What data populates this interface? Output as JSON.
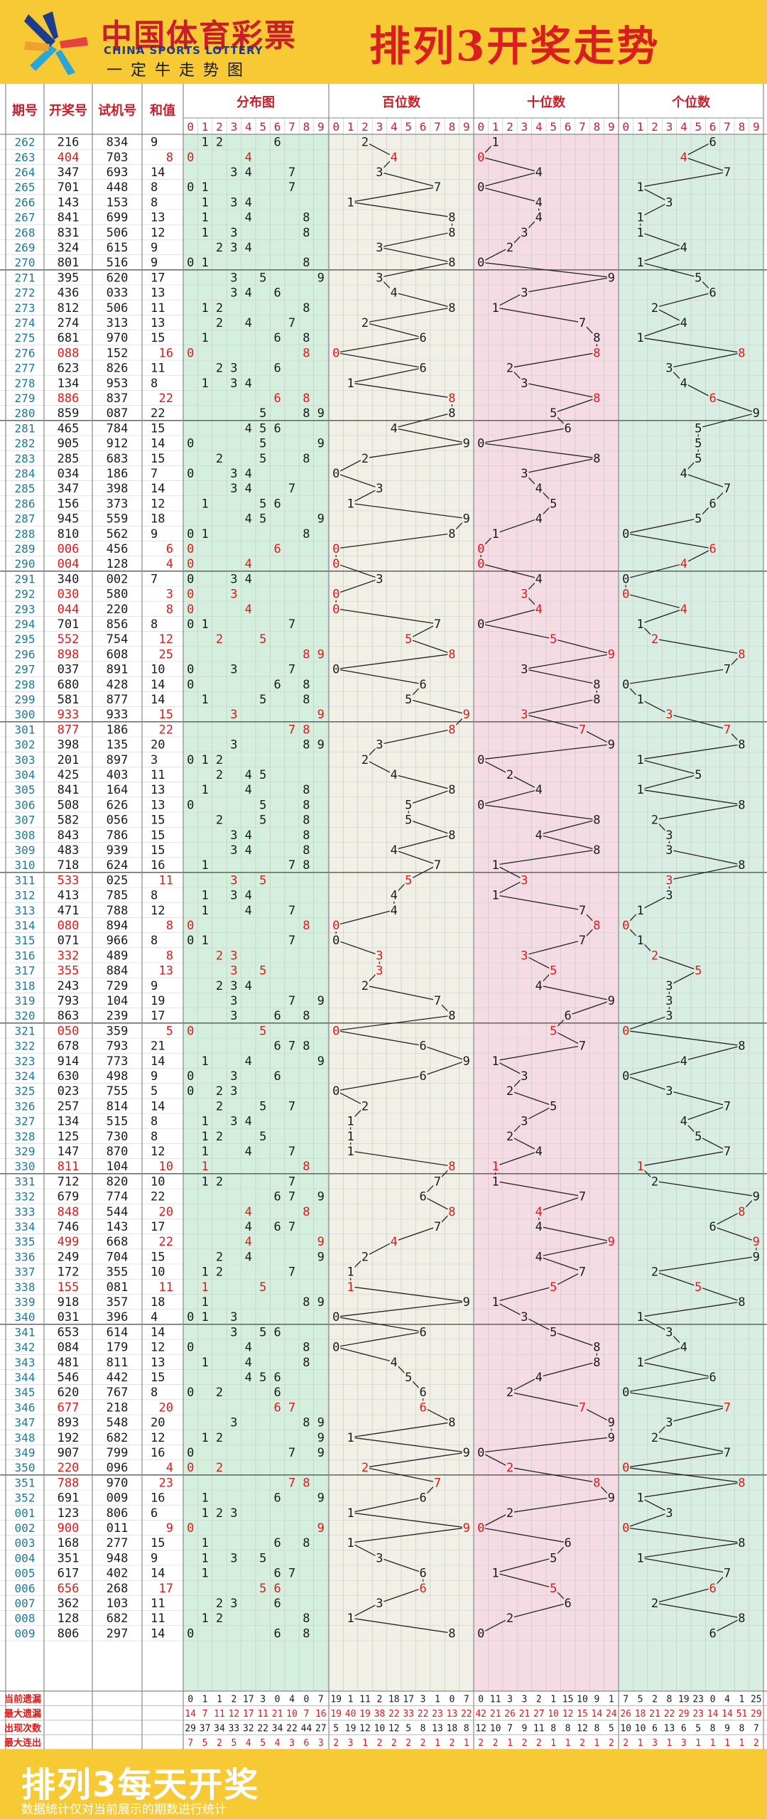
{
  "header": {
    "brand_cn": "中国体育彩票",
    "brand_en": "CHINA SPORTS LOTTERY",
    "slogan": "一定牛走势图",
    "title": "排列3开奖走势"
  },
  "footer": {
    "title": "排列3每天开奖",
    "note": "数据统计仅对当前展示的期数进行统计"
  },
  "colors": {
    "accent_red": "#e01818",
    "dist_bg": "#d5efde",
    "hundreds_bg": "#f1f0e7",
    "tens_bg": "#f5dbe4",
    "units_bg": "#d9eee3",
    "header_bg": "#f7c935"
  },
  "chart_data": {
    "type": "table",
    "columns": {
      "period": "期号",
      "draw": "开奖号",
      "trial": "试机号",
      "sum": "和值"
    },
    "groups": [
      "分布图",
      "百位数",
      "十位数",
      "个位数"
    ],
    "digit_headers": [
      "0",
      "1",
      "2",
      "3",
      "4",
      "5",
      "6",
      "7",
      "8",
      "9"
    ],
    "rows": [
      [
        "262",
        "216",
        "834",
        "9"
      ],
      [
        "263",
        "404",
        "703",
        "8"
      ],
      [
        "264",
        "347",
        "693",
        "14"
      ],
      [
        "265",
        "701",
        "448",
        "8"
      ],
      [
        "266",
        "143",
        "153",
        "8"
      ],
      [
        "267",
        "841",
        "699",
        "13"
      ],
      [
        "268",
        "831",
        "506",
        "12"
      ],
      [
        "269",
        "324",
        "615",
        "9"
      ],
      [
        "270",
        "801",
        "516",
        "9"
      ],
      [
        "271",
        "395",
        "620",
        "17"
      ],
      [
        "272",
        "436",
        "033",
        "13"
      ],
      [
        "273",
        "812",
        "506",
        "11"
      ],
      [
        "274",
        "274",
        "313",
        "13"
      ],
      [
        "275",
        "681",
        "970",
        "15"
      ],
      [
        "276",
        "088",
        "152",
        "16"
      ],
      [
        "277",
        "623",
        "826",
        "11"
      ],
      [
        "278",
        "134",
        "953",
        "8"
      ],
      [
        "279",
        "886",
        "837",
        "22"
      ],
      [
        "280",
        "859",
        "087",
        "22"
      ],
      [
        "281",
        "465",
        "784",
        "15"
      ],
      [
        "282",
        "905",
        "912",
        "14"
      ],
      [
        "283",
        "285",
        "683",
        "15"
      ],
      [
        "284",
        "034",
        "186",
        "7"
      ],
      [
        "285",
        "347",
        "398",
        "14"
      ],
      [
        "286",
        "156",
        "373",
        "12"
      ],
      [
        "287",
        "945",
        "559",
        "18"
      ],
      [
        "288",
        "810",
        "562",
        "9"
      ],
      [
        "289",
        "006",
        "456",
        "6"
      ],
      [
        "290",
        "004",
        "128",
        "4"
      ],
      [
        "291",
        "340",
        "002",
        "7"
      ],
      [
        "292",
        "030",
        "580",
        "3"
      ],
      [
        "293",
        "044",
        "220",
        "8"
      ],
      [
        "294",
        "701",
        "856",
        "8"
      ],
      [
        "295",
        "552",
        "754",
        "12"
      ],
      [
        "296",
        "898",
        "608",
        "25"
      ],
      [
        "297",
        "037",
        "891",
        "10"
      ],
      [
        "298",
        "680",
        "428",
        "14"
      ],
      [
        "299",
        "581",
        "877",
        "14"
      ],
      [
        "300",
        "933",
        "933",
        "15"
      ],
      [
        "301",
        "877",
        "186",
        "22"
      ],
      [
        "302",
        "398",
        "135",
        "20"
      ],
      [
        "303",
        "201",
        "897",
        "3"
      ],
      [
        "304",
        "425",
        "403",
        "11"
      ],
      [
        "305",
        "841",
        "164",
        "13"
      ],
      [
        "306",
        "508",
        "626",
        "13"
      ],
      [
        "307",
        "582",
        "056",
        "15"
      ],
      [
        "308",
        "843",
        "786",
        "15"
      ],
      [
        "309",
        "483",
        "939",
        "15"
      ],
      [
        "310",
        "718",
        "624",
        "16"
      ],
      [
        "311",
        "533",
        "025",
        "11"
      ],
      [
        "312",
        "413",
        "785",
        "8"
      ],
      [
        "313",
        "471",
        "788",
        "12"
      ],
      [
        "314",
        "080",
        "894",
        "8"
      ],
      [
        "315",
        "071",
        "966",
        "8"
      ],
      [
        "316",
        "332",
        "489",
        "8"
      ],
      [
        "317",
        "355",
        "884",
        "13"
      ],
      [
        "318",
        "243",
        "729",
        "9"
      ],
      [
        "319",
        "793",
        "104",
        "19"
      ],
      [
        "320",
        "863",
        "239",
        "17"
      ],
      [
        "321",
        "050",
        "359",
        "5"
      ],
      [
        "322",
        "678",
        "793",
        "21"
      ],
      [
        "323",
        "914",
        "773",
        "14"
      ],
      [
        "324",
        "630",
        "498",
        "9"
      ],
      [
        "325",
        "023",
        "755",
        "5"
      ],
      [
        "326",
        "257",
        "814",
        "14"
      ],
      [
        "327",
        "134",
        "515",
        "8"
      ],
      [
        "328",
        "125",
        "730",
        "8"
      ],
      [
        "329",
        "147",
        "870",
        "12"
      ],
      [
        "330",
        "811",
        "104",
        "10"
      ],
      [
        "331",
        "712",
        "820",
        "10"
      ],
      [
        "332",
        "679",
        "774",
        "22"
      ],
      [
        "333",
        "848",
        "544",
        "20"
      ],
      [
        "334",
        "746",
        "143",
        "17"
      ],
      [
        "335",
        "499",
        "668",
        "22"
      ],
      [
        "336",
        "249",
        "704",
        "15"
      ],
      [
        "337",
        "172",
        "355",
        "10"
      ],
      [
        "338",
        "155",
        "081",
        "11"
      ],
      [
        "339",
        "918",
        "357",
        "18"
      ],
      [
        "340",
        "031",
        "396",
        "4"
      ],
      [
        "341",
        "653",
        "614",
        "14"
      ],
      [
        "342",
        "084",
        "179",
        "12"
      ],
      [
        "343",
        "481",
        "811",
        "13"
      ],
      [
        "344",
        "546",
        "442",
        "15"
      ],
      [
        "345",
        "620",
        "767",
        "8"
      ],
      [
        "346",
        "677",
        "218",
        "20"
      ],
      [
        "347",
        "893",
        "548",
        "20"
      ],
      [
        "348",
        "192",
        "682",
        "12"
      ],
      [
        "349",
        "907",
        "799",
        "16"
      ],
      [
        "350",
        "220",
        "096",
        "4"
      ],
      [
        "351",
        "788",
        "970",
        "23"
      ],
      [
        "352",
        "691",
        "009",
        "16"
      ],
      [
        "001",
        "123",
        "806",
        "6"
      ],
      [
        "002",
        "900",
        "011",
        "9"
      ],
      [
        "003",
        "168",
        "277",
        "15"
      ],
      [
        "004",
        "351",
        "948",
        "9"
      ],
      [
        "005",
        "617",
        "402",
        "14"
      ],
      [
        "006",
        "656",
        "268",
        "17"
      ],
      [
        "007",
        "362",
        "103",
        "11"
      ],
      [
        "008",
        "128",
        "682",
        "11"
      ],
      [
        "009",
        "806",
        "297",
        "14"
      ]
    ],
    "stats": [
      {
        "label": "当前遗漏",
        "values": [
          "0",
          "1",
          "1",
          "2",
          "17",
          "3",
          "0",
          "4",
          "0",
          "7",
          "19",
          "1",
          "11",
          "2",
          "18",
          "17",
          "3",
          "1",
          "0",
          "7",
          "0",
          "11",
          "3",
          "3",
          "2",
          "1",
          "15",
          "10",
          "9",
          "1",
          "7",
          "5",
          "2",
          "8",
          "19",
          "23",
          "0",
          "4",
          "1",
          "25"
        ]
      },
      {
        "label": "最大遗漏",
        "values": [
          "14",
          "7",
          "11",
          "12",
          "17",
          "11",
          "21",
          "10",
          "7",
          "16",
          "19",
          "40",
          "19",
          "38",
          "22",
          "33",
          "22",
          "23",
          "13",
          "22",
          "42",
          "21",
          "26",
          "21",
          "27",
          "10",
          "12",
          "15",
          "14",
          "24",
          "26",
          "18",
          "21",
          "22",
          "29",
          "23",
          "14",
          "14",
          "51",
          "29"
        ]
      },
      {
        "label": "出现次数",
        "values": [
          "29",
          "37",
          "34",
          "33",
          "32",
          "22",
          "34",
          "22",
          "44",
          "27",
          "5",
          "19",
          "12",
          "10",
          "12",
          "5",
          "8",
          "13",
          "18",
          "8",
          "12",
          "10",
          "7",
          "9",
          "11",
          "8",
          "8",
          "12",
          "8",
          "5",
          "10",
          "10",
          "6",
          "13",
          "6",
          "5",
          "8",
          "9",
          "8",
          "7"
        ]
      },
      {
        "label": "最大连出",
        "values": [
          "7",
          "5",
          "2",
          "5",
          "4",
          "5",
          "4",
          "3",
          "6",
          "3",
          "2",
          "3",
          "1",
          "2",
          "2",
          "2",
          "2",
          "1",
          "2",
          "1",
          "2",
          "2",
          "1",
          "2",
          "2",
          "1",
          "1",
          "2",
          "1",
          "2",
          "2",
          "1",
          "3",
          "1",
          "3",
          "1",
          "1",
          "1",
          "1",
          "2"
        ]
      }
    ]
  }
}
